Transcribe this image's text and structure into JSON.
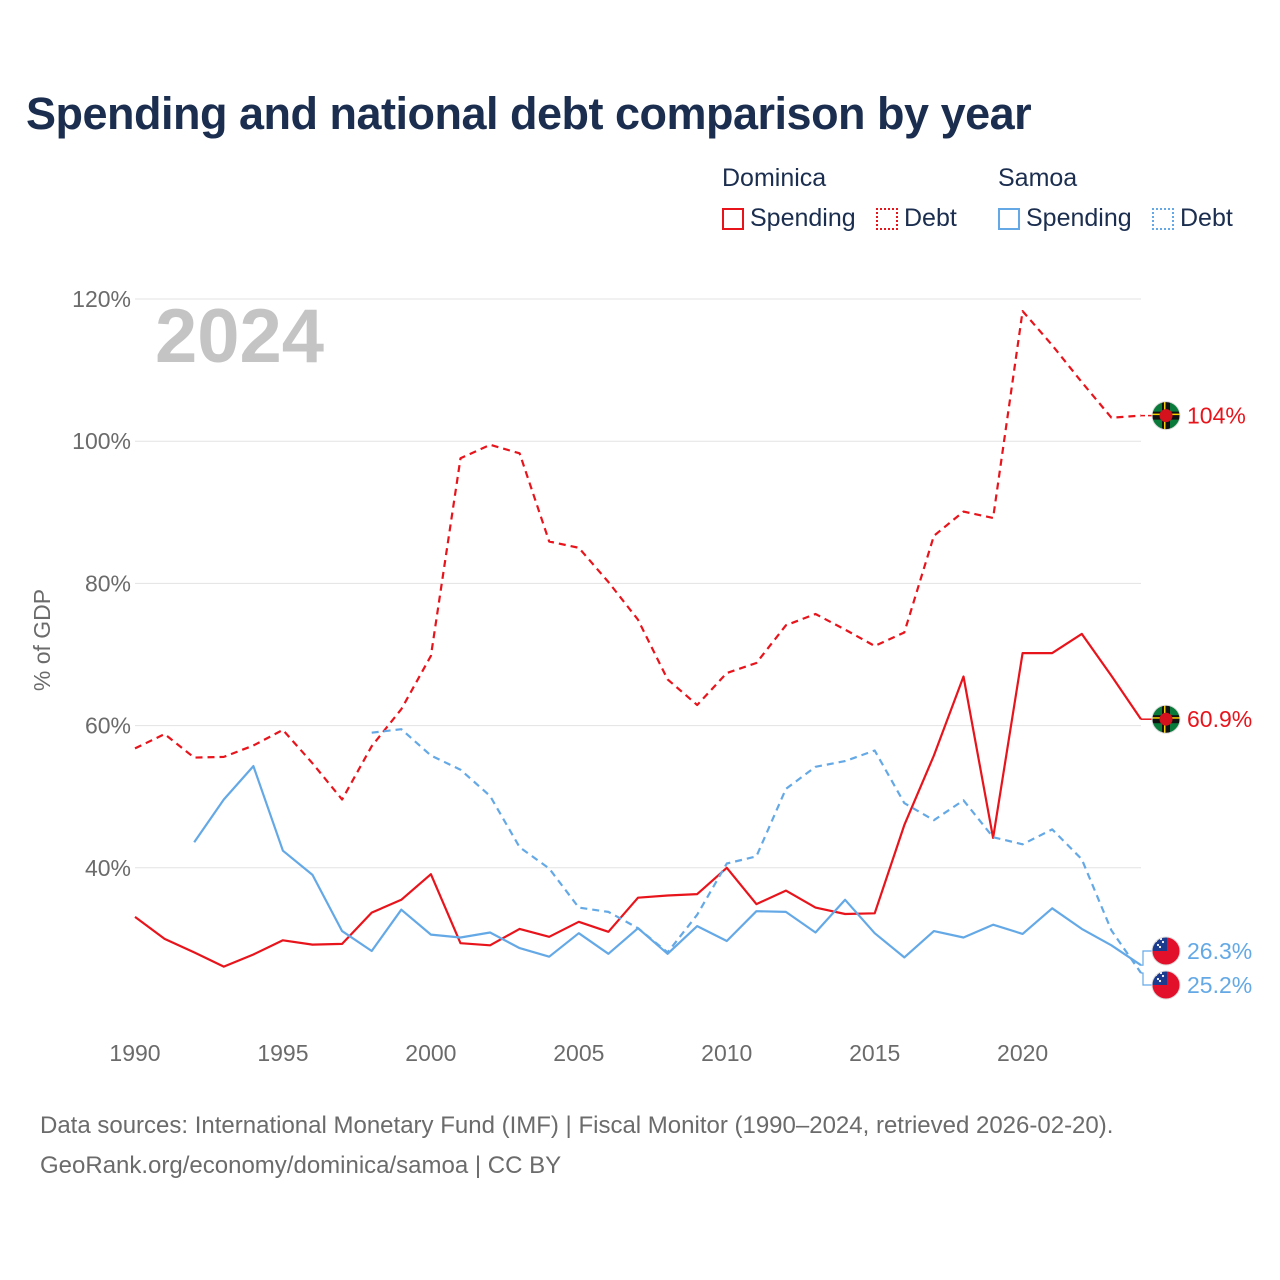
{
  "title": "Spending and national debt comparison by year",
  "legend": {
    "groups": [
      {
        "country": "Dominica",
        "spending_label": "Spending",
        "debt_label": "Debt",
        "color": "#e8141c"
      },
      {
        "country": "Samoa",
        "spending_label": "Spending",
        "debt_label": "Debt",
        "color": "#64a9e6"
      }
    ]
  },
  "year_watermark": "2024",
  "footer": {
    "line1": "Data sources: International Monetary Fund (IMF) | Fiscal Monitor (1990–2024, retrieved 2026-02-20).",
    "line2": "GeoRank.org/economy/dominica/samoa | CC BY"
  },
  "chart_data": {
    "type": "line",
    "title": "Spending and national debt comparison by year",
    "ylabel": "% of GDP",
    "xlabel": "",
    "xlim": [
      1990,
      2024
    ],
    "ylim": [
      20,
      120
    ],
    "yticks": [
      40,
      60,
      80,
      100,
      120
    ],
    "ytick_labels": [
      "40%",
      "60%",
      "80%",
      "100%",
      "120%"
    ],
    "xticks": [
      1990,
      1995,
      2000,
      2005,
      2010,
      2015,
      2020
    ],
    "xtick_labels": [
      "1990",
      "1995",
      "2000",
      "2005",
      "2010",
      "2015",
      "2020"
    ],
    "grid": true,
    "series": [
      {
        "name": "Dominica Debt",
        "country": "Dominica",
        "kind": "debt",
        "dashed": true,
        "color": "#e8141c",
        "end_label": "104%",
        "flag": "dominica",
        "x": [
          1990,
          1991,
          1992,
          1993,
          1994,
          1995,
          1996,
          1997,
          1998,
          1999,
          2000,
          2001,
          2002,
          2003,
          2004,
          2005,
          2006,
          2007,
          2008,
          2009,
          2010,
          2011,
          2012,
          2013,
          2014,
          2015,
          2016,
          2017,
          2018,
          2019,
          2020,
          2021,
          2022,
          2023,
          2024
        ],
        "y": [
          56.8,
          58.8,
          55.5,
          55.6,
          57.2,
          59.4,
          54.7,
          49.6,
          57.1,
          62.3,
          69.8,
          97.6,
          99.5,
          98.3,
          85.9,
          85.0,
          80.2,
          74.9,
          66.5,
          62.9,
          67.4,
          68.8,
          74.1,
          75.7,
          73.5,
          71.2,
          73.1,
          86.7,
          90.1,
          89.2,
          118.3,
          113.5,
          108.3,
          103.3,
          103.6
        ]
      },
      {
        "name": "Dominica Spending",
        "country": "Dominica",
        "kind": "spending",
        "dashed": false,
        "color": "#e8141c",
        "end_label": "60.9%",
        "flag": "dominica",
        "x": [
          1990,
          1991,
          1992,
          1993,
          1994,
          1995,
          1996,
          1997,
          1998,
          1999,
          2000,
          2001,
          2002,
          2003,
          2004,
          2005,
          2006,
          2007,
          2008,
          2009,
          2010,
          2011,
          2012,
          2013,
          2014,
          2015,
          2016,
          2017,
          2018,
          2019,
          2020,
          2021,
          2022,
          2023,
          2024
        ],
        "y": [
          33.1,
          30.0,
          28.1,
          26.1,
          27.8,
          29.8,
          29.2,
          29.3,
          33.7,
          35.5,
          39.1,
          29.4,
          29.1,
          31.4,
          30.3,
          32.4,
          31.0,
          35.8,
          36.1,
          36.3,
          40.0,
          34.9,
          36.8,
          34.4,
          33.5,
          33.6,
          46.0,
          55.8,
          66.9,
          44.2,
          70.2,
          70.2,
          72.9,
          67.0,
          60.9
        ]
      },
      {
        "name": "Samoa Debt",
        "country": "Samoa",
        "kind": "debt",
        "dashed": true,
        "color": "#64a9e6",
        "end_label": "25.2%",
        "flag": "samoa",
        "x": [
          1998,
          1999,
          2000,
          2001,
          2002,
          2003,
          2004,
          2005,
          2006,
          2007,
          2008,
          2009,
          2010,
          2011,
          2012,
          2013,
          2014,
          2015,
          2016,
          2017,
          2018,
          2019,
          2020,
          2021,
          2022,
          2023,
          2024
        ],
        "y": [
          59.0,
          59.5,
          55.8,
          53.8,
          50.1,
          42.9,
          39.9,
          34.4,
          33.8,
          31.5,
          28.1,
          33.4,
          40.6,
          41.6,
          51.1,
          54.2,
          55.0,
          56.5,
          49.1,
          46.7,
          49.5,
          44.3,
          43.3,
          45.4,
          41.2,
          31.2,
          25.2
        ]
      },
      {
        "name": "Samoa Spending",
        "country": "Samoa",
        "kind": "spending",
        "dashed": false,
        "color": "#64a9e6",
        "end_label": "26.3%",
        "flag": "samoa",
        "x": [
          1992,
          1993,
          1994,
          1995,
          1996,
          1997,
          1998,
          1999,
          2000,
          2001,
          2002,
          2003,
          2004,
          2005,
          2006,
          2007,
          2008,
          2009,
          2010,
          2011,
          2012,
          2013,
          2014,
          2015,
          2016,
          2017,
          2018,
          2019,
          2020,
          2021,
          2022,
          2023,
          2024
        ],
        "y": [
          43.6,
          49.6,
          54.3,
          42.4,
          39.0,
          31.1,
          28.3,
          34.1,
          30.6,
          30.2,
          30.9,
          28.7,
          27.5,
          30.8,
          27.9,
          31.5,
          27.9,
          31.8,
          29.7,
          33.9,
          33.8,
          30.9,
          35.5,
          30.8,
          27.4,
          31.1,
          30.2,
          32.0,
          30.7,
          34.3,
          31.4,
          29.1,
          26.3
        ]
      }
    ]
  }
}
